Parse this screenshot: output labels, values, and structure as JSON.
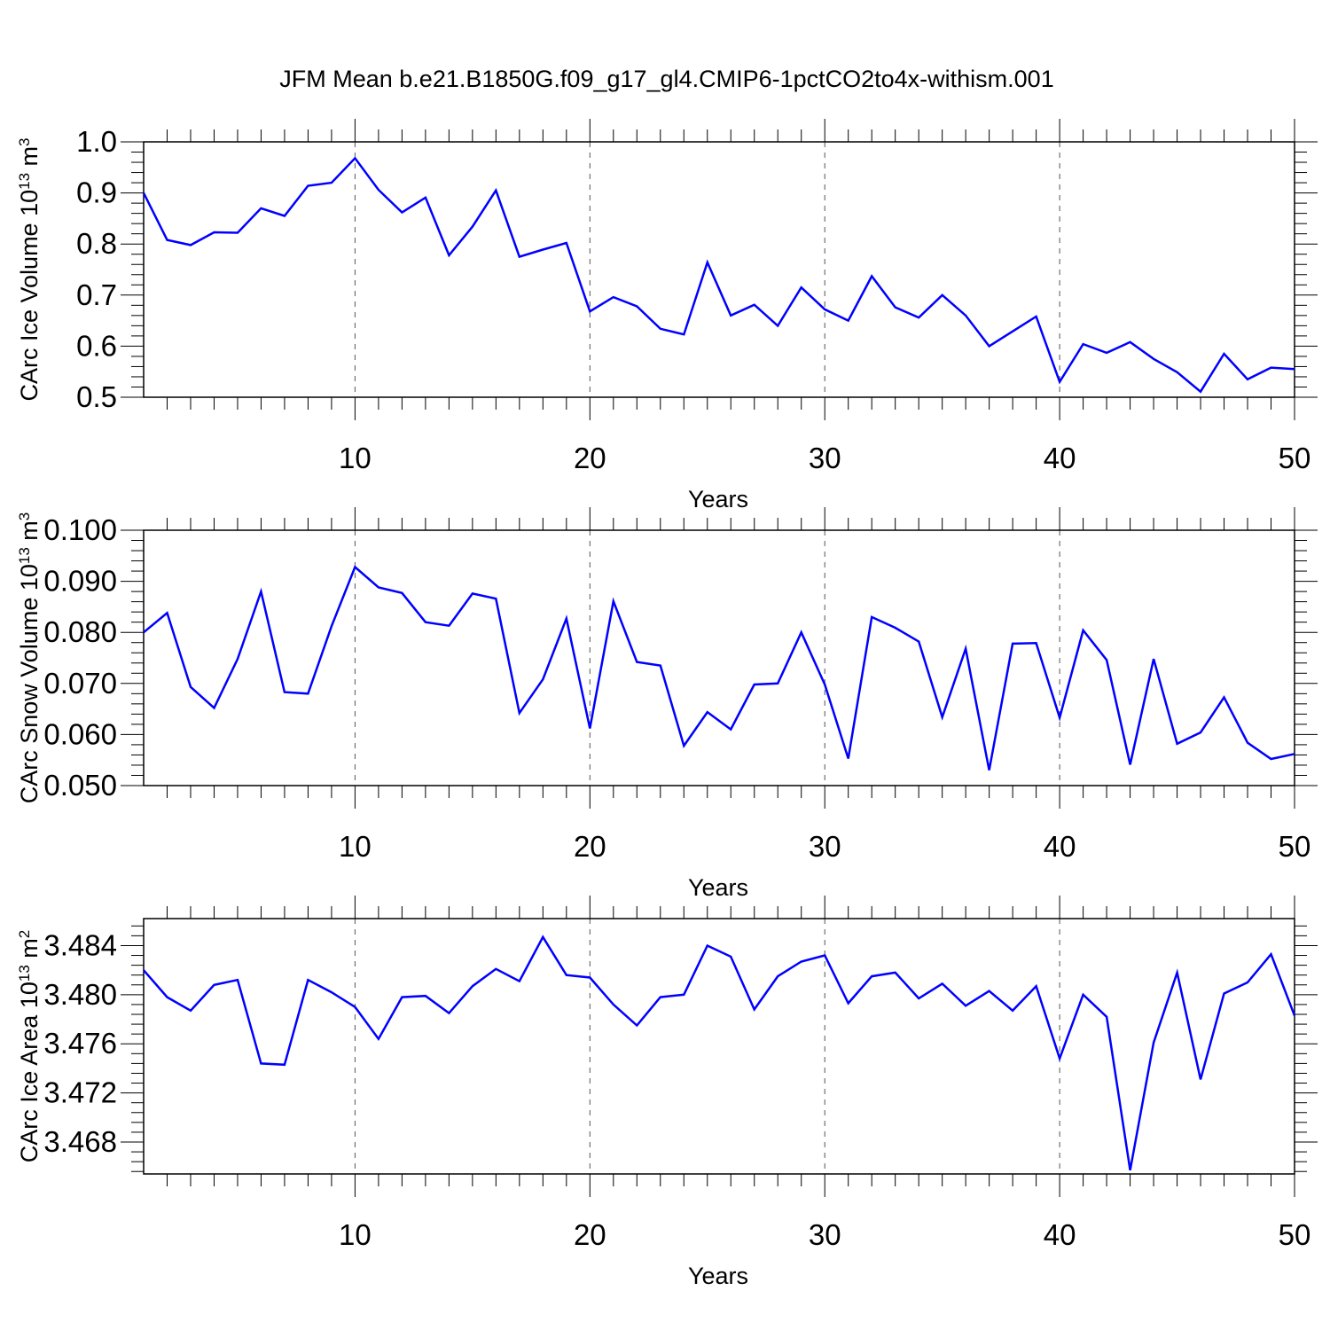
{
  "title": "JFM Mean b.e21.B1850G.f09_g17_gl4.CMIP6-1pctCO2to4x-withism.001",
  "colors": {
    "line": "#0000ff",
    "axis": "#000000",
    "grid": "#555555"
  },
  "chart_data": [
    {
      "type": "line",
      "xlabel": "Years",
      "ylabel": "CArc Ice Volume 10",
      "ylabel_exp": "13",
      "ylabel_unit": " m",
      "ylabel_unit_exp": "3",
      "xlim": [
        1,
        50
      ],
      "ylim": [
        0.5,
        1.0
      ],
      "x_ticks": [
        10,
        20,
        30,
        40,
        50
      ],
      "y_ticks": [
        "0.5",
        "0.6",
        "0.7",
        "0.8",
        "0.9",
        "1.0"
      ],
      "grid": "vertical dashed at x ticks",
      "series": [
        {
          "x": [
            1,
            2,
            3,
            4,
            5,
            6,
            7,
            8,
            9,
            10,
            11,
            12,
            13,
            14,
            15,
            16,
            17,
            18,
            19,
            20,
            21,
            22,
            23,
            24,
            25,
            26,
            27,
            28,
            29,
            30,
            31,
            32,
            33,
            34,
            35,
            36,
            37,
            38,
            39,
            40,
            41,
            42,
            43,
            44,
            45,
            46,
            47,
            48,
            49,
            50
          ],
          "values": [
            0.9,
            0.808,
            0.798,
            0.823,
            0.822,
            0.87,
            0.855,
            0.914,
            0.92,
            0.968,
            0.906,
            0.862,
            0.891,
            0.778,
            0.834,
            0.905,
            0.775,
            0.789,
            0.802,
            0.668,
            0.696,
            0.678,
            0.634,
            0.623,
            0.764,
            0.66,
            0.681,
            0.64,
            0.715,
            0.672,
            0.65,
            0.737,
            0.676,
            0.656,
            0.7,
            0.66,
            0.6,
            0.629,
            0.658,
            0.53,
            0.604,
            0.587,
            0.608,
            0.575,
            0.549,
            0.511,
            0.585,
            0.535,
            0.558,
            0.555
          ]
        }
      ]
    },
    {
      "type": "line",
      "xlabel": "Years",
      "ylabel": "CArc Snow Volume 10",
      "ylabel_exp": "13",
      "ylabel_unit": " m",
      "ylabel_unit_exp": "3",
      "xlim": [
        1,
        50
      ],
      "ylim": [
        0.05,
        0.1
      ],
      "x_ticks": [
        10,
        20,
        30,
        40,
        50
      ],
      "y_ticks": [
        "0.050",
        "0.060",
        "0.070",
        "0.080",
        "0.090",
        "0.100"
      ],
      "grid": "vertical dashed at x ticks",
      "series": [
        {
          "x": [
            1,
            2,
            3,
            4,
            5,
            6,
            7,
            8,
            9,
            10,
            11,
            12,
            13,
            14,
            15,
            16,
            17,
            18,
            19,
            20,
            21,
            22,
            23,
            24,
            25,
            26,
            27,
            28,
            29,
            30,
            31,
            32,
            33,
            34,
            35,
            36,
            37,
            38,
            39,
            40,
            41,
            42,
            43,
            44,
            45,
            46,
            47,
            48,
            49,
            50
          ],
          "values": [
            0.08,
            0.0838,
            0.0693,
            0.0652,
            0.0748,
            0.088,
            0.0683,
            0.068,
            0.0812,
            0.0928,
            0.0888,
            0.0877,
            0.082,
            0.0813,
            0.0876,
            0.0866,
            0.0642,
            0.0708,
            0.0827,
            0.0612,
            0.0861,
            0.0742,
            0.0735,
            0.0578,
            0.0644,
            0.061,
            0.0698,
            0.07,
            0.08,
            0.0698,
            0.0553,
            0.083,
            0.0809,
            0.0782,
            0.0634,
            0.0768,
            0.053,
            0.0778,
            0.0779,
            0.0633,
            0.0804,
            0.0746,
            0.0541,
            0.0748,
            0.0582,
            0.0604,
            0.0673,
            0.0584,
            0.0552,
            0.0562
          ]
        }
      ]
    },
    {
      "type": "line",
      "xlabel": "Years",
      "ylabel": "CArc Ice Area 10",
      "ylabel_exp": "13",
      "ylabel_unit": " m",
      "ylabel_unit_exp": "2",
      "xlim": [
        1,
        50
      ],
      "ylim": [
        3.4654,
        3.4862
      ],
      "x_ticks": [
        10,
        20,
        30,
        40,
        50
      ],
      "y_ticks": [
        "3.468",
        "3.472",
        "3.476",
        "3.480",
        "3.484"
      ],
      "grid": "vertical dashed at x ticks",
      "series": [
        {
          "x": [
            1,
            2,
            3,
            4,
            5,
            6,
            7,
            8,
            9,
            10,
            11,
            12,
            13,
            14,
            15,
            16,
            17,
            18,
            19,
            20,
            21,
            22,
            23,
            24,
            25,
            26,
            27,
            28,
            29,
            30,
            31,
            32,
            33,
            34,
            35,
            36,
            37,
            38,
            39,
            40,
            41,
            42,
            43,
            44,
            45,
            46,
            47,
            48,
            49,
            50
          ],
          "values": [
            3.482,
            3.4798,
            3.4787,
            3.4808,
            3.4812,
            3.4744,
            3.4743,
            3.4812,
            3.4802,
            3.479,
            3.4764,
            3.4798,
            3.4799,
            3.4785,
            3.4807,
            3.4821,
            3.4811,
            3.4847,
            3.4816,
            3.4814,
            3.4792,
            3.4775,
            3.4798,
            3.48,
            3.484,
            3.4831,
            3.4788,
            3.4815,
            3.4827,
            3.4832,
            3.4793,
            3.4815,
            3.4818,
            3.4797,
            3.4809,
            3.4791,
            3.4803,
            3.4787,
            3.4807,
            3.4748,
            3.48,
            3.4782,
            3.4657,
            3.4761,
            3.4818,
            3.4731,
            3.4801,
            3.481,
            3.4833,
            3.4783
          ]
        }
      ]
    }
  ]
}
